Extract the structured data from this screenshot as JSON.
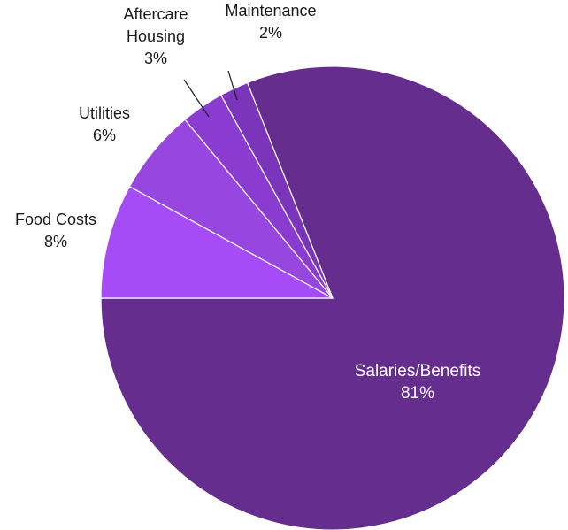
{
  "chart_data": {
    "type": "pie",
    "title": "",
    "slices": [
      {
        "label": "Salaries/Benefits",
        "value": 81,
        "pct_label": "81%",
        "color": "#652d8e"
      },
      {
        "label": "Food Costs",
        "value": 8,
        "pct_label": "8%",
        "color": "#a64cf6"
      },
      {
        "label": "Utilities",
        "value": 6,
        "pct_label": "6%",
        "color": "#9747e0"
      },
      {
        "label": "Aftercare\nHousing",
        "value": 3,
        "pct_label": "3%",
        "color": "#8a3cd0"
      },
      {
        "label": "Maintenance",
        "value": 2,
        "pct_label": "2%",
        "color": "#7b35bb"
      }
    ],
    "legend": "none",
    "slice_border_color": "#ffffff"
  }
}
